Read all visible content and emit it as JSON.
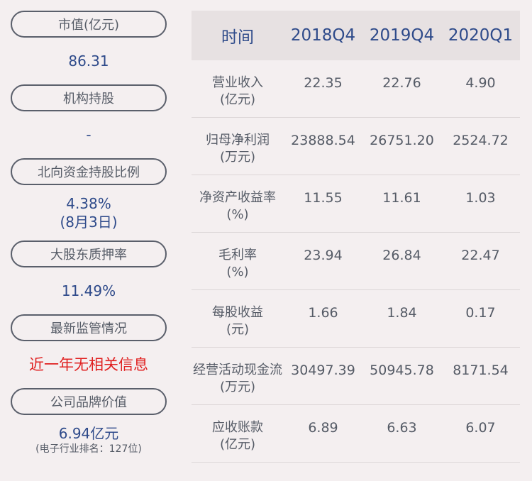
{
  "left": {
    "items": [
      {
        "label": "市值(亿元)",
        "value": "86.31"
      },
      {
        "label": "机构持股",
        "value": "-"
      },
      {
        "label": "北向资金持股比例",
        "value": "4.38%",
        "value2": "(8月3日)"
      },
      {
        "label": "大股东质押率",
        "value": "11.49%"
      },
      {
        "label": "最新监管情况",
        "value": "近一年无相关信息"
      },
      {
        "label": "公司品牌价值",
        "value": "6.94亿元",
        "note": "(电子行业排名：127位)"
      }
    ]
  },
  "table": {
    "headers": [
      "时间",
      "2018Q4",
      "2019Q4",
      "2020Q1"
    ],
    "rows": [
      {
        "label1": "营业收入",
        "label2": "(亿元)",
        "values": [
          "22.35",
          "22.76",
          "4.90"
        ]
      },
      {
        "label1": "归母净利润",
        "label2": "(万元)",
        "values": [
          "23888.54",
          "26751.20",
          "2524.72"
        ]
      },
      {
        "label1": "净资产收益率",
        "label2": "(%)",
        "values": [
          "11.55",
          "11.61",
          "1.03"
        ]
      },
      {
        "label1": "毛利率",
        "label2": "(%)",
        "values": [
          "23.94",
          "26.84",
          "22.47"
        ]
      },
      {
        "label1": "每股收益",
        "label2": "(元)",
        "values": [
          "1.66",
          "1.84",
          "0.17"
        ]
      },
      {
        "label1": "经营活动现金流",
        "label2": "(万元)",
        "values": [
          "30497.39",
          "50945.78",
          "8171.54"
        ]
      },
      {
        "label1": "应收账款",
        "label2": "(亿元)",
        "values": [
          "6.89",
          "6.63",
          "6.07"
        ]
      }
    ]
  },
  "colors": {
    "background": "#f4eff0",
    "header_bg": "#e7e1e2",
    "accent_blue": "#2e4a8a",
    "alert_red": "#e02020",
    "text_gray": "#555b66"
  }
}
